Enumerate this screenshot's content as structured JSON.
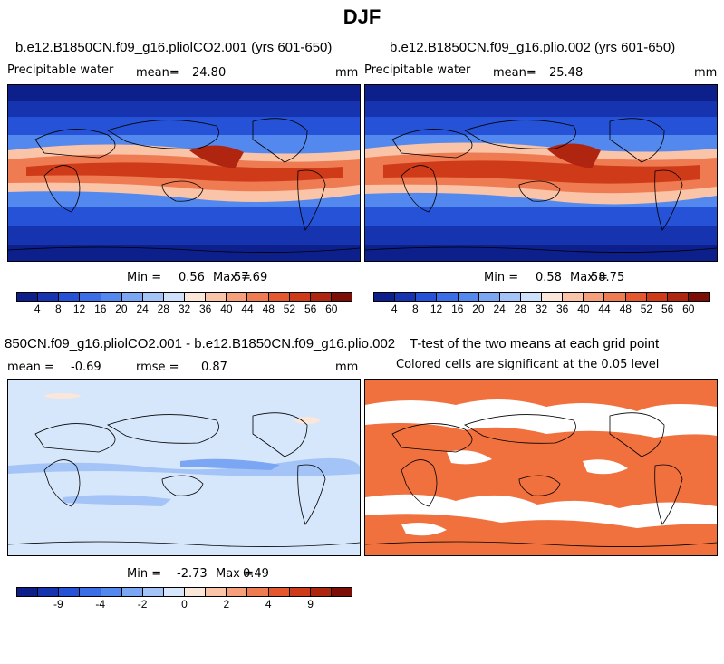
{
  "figure_title": "DJF",
  "panels": {
    "p1": {
      "title": "b.e12.B1850CN.f09_g16.pliolCO2.001 (yrs 601-650)",
      "variable": "Precipitable water",
      "mean_label": "mean=",
      "mean_value": "24.80",
      "units": "mm",
      "min_label": "Min =",
      "min_value": "0.56",
      "max_label": "Max =",
      "max_value": "57.69"
    },
    "p2": {
      "title": "b.e12.B1850CN.f09_g16.plio.002 (yrs 601-650)",
      "variable": "Precipitable water",
      "mean_label": "mean=",
      "mean_value": "25.48",
      "units": "mm",
      "min_label": "Min =",
      "min_value": "0.58",
      "max_label": "Max =",
      "max_value": "58.75"
    },
    "p3": {
      "title": "850CN.f09_g16.pliolCO2.001 - b.e12.B1850CN.f09_g16.plio.002",
      "mean_label": "mean =",
      "mean_value": "-0.69",
      "rmse_label": "rmse =",
      "rmse_value": "0.87",
      "units": "mm",
      "min_label": "Min =",
      "min_value": "-2.73",
      "max_label": "Max =",
      "max_value": "0.49"
    },
    "p4": {
      "title": "T-test of the two means at each grid point",
      "subtitle": "Colored cells are significant at the 0.05 level"
    }
  },
  "colorbar_abs": {
    "colors": [
      "#0c1f8a",
      "#1734b0",
      "#2552d6",
      "#3a6ee6",
      "#5388ee",
      "#7aa6f4",
      "#a4c4f8",
      "#cfe0fb",
      "#fbe6da",
      "#f9c4a8",
      "#f5a07a",
      "#ef7b52",
      "#e5582f",
      "#cf3a18",
      "#b02510",
      "#7d0e07"
    ],
    "labels": [
      "4",
      "8",
      "12",
      "16",
      "20",
      "24",
      "28",
      "32",
      "36",
      "40",
      "44",
      "48",
      "52",
      "56",
      "60"
    ]
  },
  "colorbar_diff": {
    "colors": [
      "#0c1f8a",
      "#1734b0",
      "#2552d6",
      "#3a6ee6",
      "#5388ee",
      "#7aa6f4",
      "#a4c4f8",
      "#d6e6fb",
      "#fbe6da",
      "#f9c4a8",
      "#f5a07a",
      "#ef7b52",
      "#e5582f",
      "#cf3a18",
      "#b02510",
      "#7d0e07"
    ],
    "labels": [
      "-9",
      "-4",
      "-2",
      "0",
      "2",
      "4",
      "9"
    ],
    "label_positions": [
      2,
      4,
      6,
      8,
      10,
      12,
      14
    ]
  },
  "map_colors": {
    "ocean_deep": "#1a3fc4",
    "mid": "#5e8ff0",
    "tropics": "#e55a2e",
    "tropics_core": "#c8300f",
    "diff_bg": "#d6e6fb",
    "diff_band": "#7aa6f4",
    "ttest": "#f0703e"
  }
}
